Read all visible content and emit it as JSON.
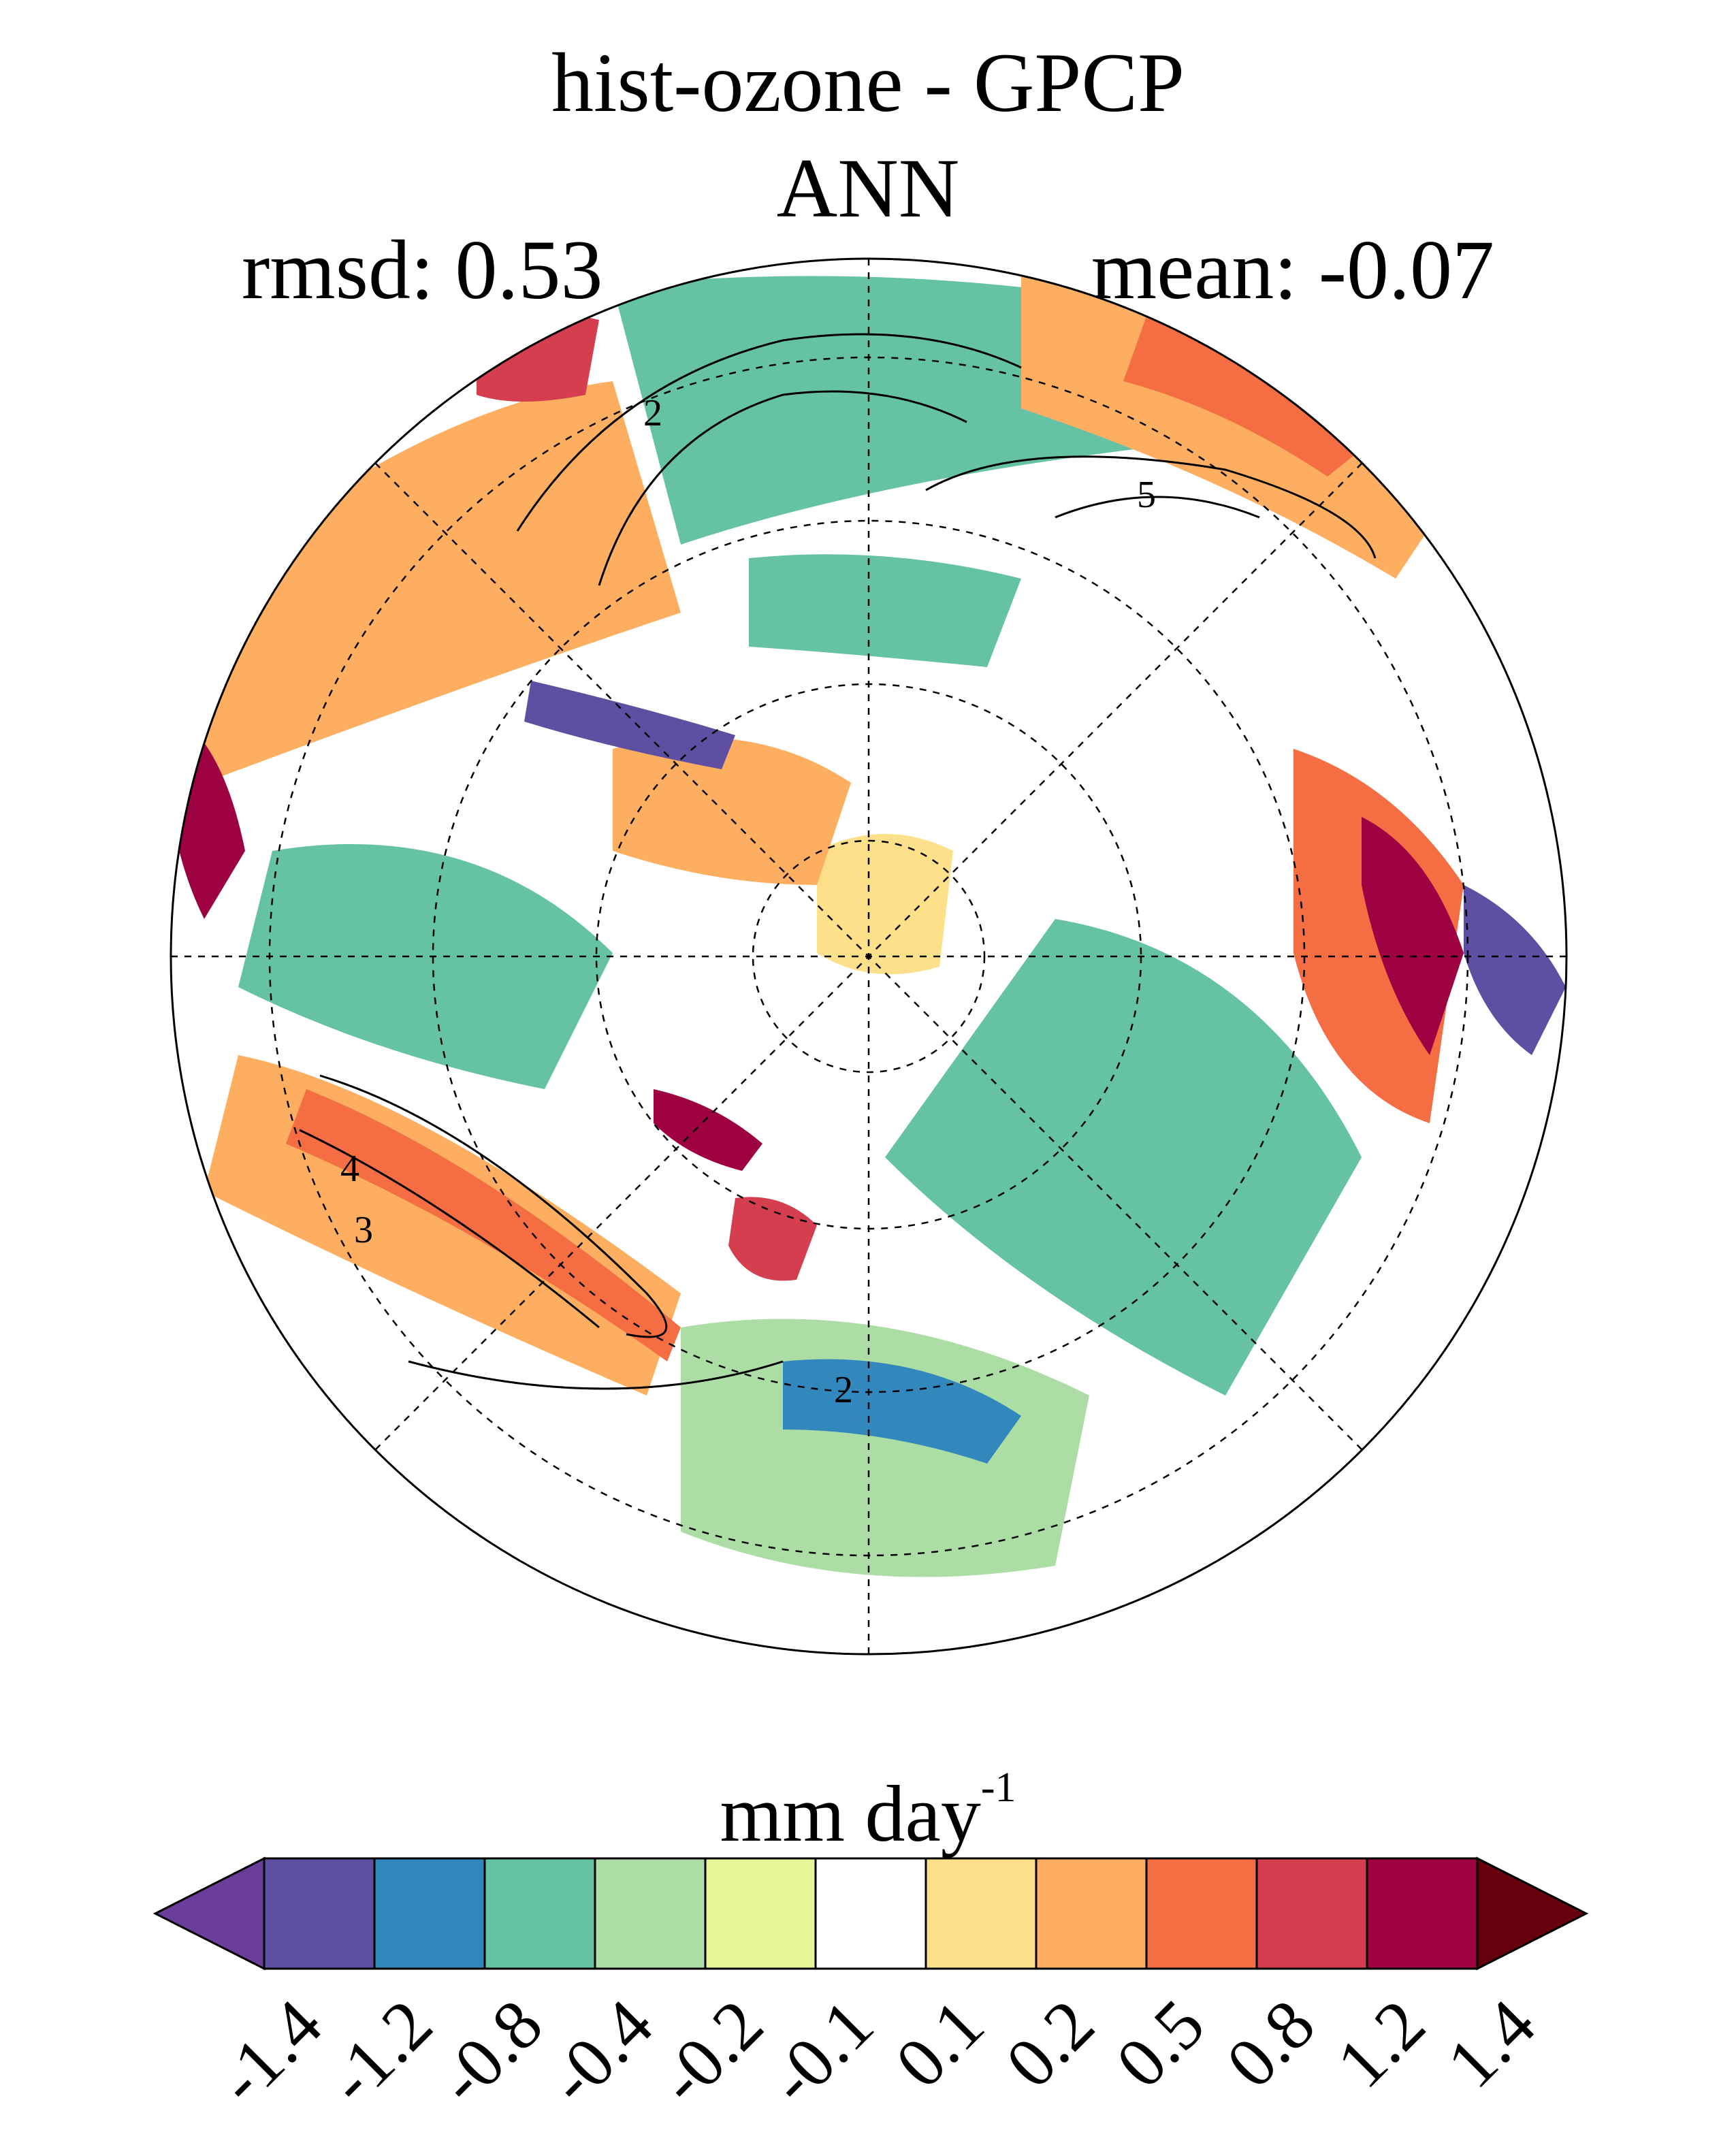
{
  "title": "hist-ozone - GPCP",
  "subtitle": "ANN",
  "stats": {
    "rmsd": "rmsd: 0.53",
    "mean": "mean: -0.07"
  },
  "map": {
    "projection": "north-polar-stereographic",
    "contour_labels": [
      "2",
      "5",
      "4",
      "3",
      "2"
    ]
  },
  "colorbar": {
    "units_text": "mm day",
    "units_exponent": "-1",
    "ticks": [
      "-1.4",
      "-1.2",
      "-0.8",
      "-0.4",
      "-0.2",
      "-0.1",
      "0.1",
      "0.2",
      "0.5",
      "0.8",
      "1.2",
      "1.4"
    ],
    "colors": [
      "#5e4fa2",
      "#3288bd",
      "#66c2a5",
      "#abdda4",
      "#e6f598",
      "#ffffff",
      "#fee08b",
      "#fdae61",
      "#f46d43",
      "#d53e4f",
      "#9e0142"
    ],
    "under_color": "#6a3d9a",
    "over_color": "#67000d"
  }
}
